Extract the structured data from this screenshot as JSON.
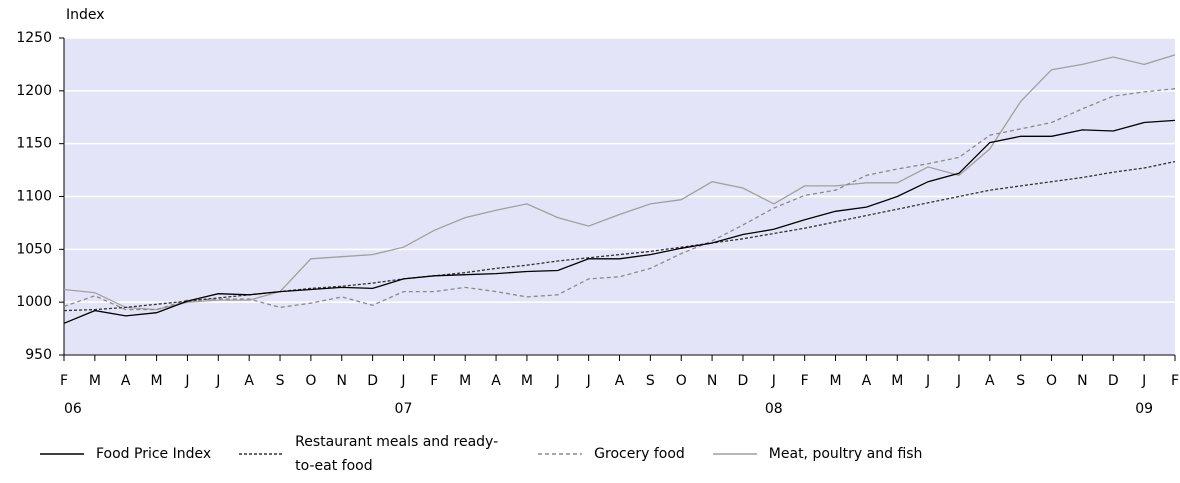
{
  "chart_data": {
    "type": "line",
    "y_label": "Index",
    "categories": [
      "F",
      "M",
      "A",
      "M",
      "J",
      "J",
      "A",
      "S",
      "O",
      "N",
      "D",
      "J",
      "F",
      "M",
      "A",
      "M",
      "J",
      "J",
      "A",
      "S",
      "O",
      "N",
      "D",
      "J",
      "F",
      "M",
      "A",
      "M",
      "J",
      "J",
      "A",
      "S",
      "O",
      "N",
      "D",
      "J",
      "F"
    ],
    "years": [
      "06",
      null,
      null,
      null,
      null,
      null,
      null,
      null,
      null,
      null,
      null,
      "07",
      null,
      null,
      null,
      null,
      null,
      null,
      null,
      null,
      null,
      null,
      null,
      "08",
      null,
      null,
      null,
      null,
      null,
      null,
      null,
      null,
      null,
      null,
      null,
      "09",
      null
    ],
    "ylim": [
      950,
      1250
    ],
    "yticks": [
      950,
      1000,
      1050,
      1100,
      1150,
      1200,
      1250
    ],
    "grid": true,
    "background": "#e4e4f8",
    "series": [
      {
        "name": "Food Price Index",
        "color": "#000000",
        "dash": "none",
        "values": [
          980,
          992,
          987,
          990,
          1001,
          1008,
          1007,
          1010,
          1012,
          1014,
          1013,
          1022,
          1025,
          1026,
          1027,
          1029,
          1030,
          1041,
          1041,
          1045,
          1051,
          1056,
          1064,
          1069,
          1078,
          1086,
          1090,
          1100,
          1114,
          1122,
          1151,
          1157,
          1157,
          1163,
          1162,
          1170,
          1172
        ]
      },
      {
        "name": "Restaurant meals and ready-to-eat food",
        "color": "#333333",
        "dash": "3 2",
        "values": [
          992,
          993,
          995,
          998,
          1001,
          1004,
          1007,
          1010,
          1013,
          1015,
          1018,
          1022,
          1025,
          1028,
          1032,
          1035,
          1039,
          1042,
          1045,
          1048,
          1052,
          1056,
          1060,
          1065,
          1070,
          1076,
          1082,
          1088,
          1094,
          1100,
          1106,
          1110,
          1114,
          1118,
          1123,
          1127,
          1133
        ]
      },
      {
        "name": "Grocery food",
        "color": "#8a8a8a",
        "dash": "4 3",
        "values": [
          996,
          1006,
          993,
          993,
          1002,
          1003,
          1003,
          995,
          999,
          1005,
          997,
          1010,
          1010,
          1014,
          1010,
          1005,
          1007,
          1022,
          1024,
          1032,
          1046,
          1058,
          1073,
          1089,
          1101,
          1106,
          1120,
          1126,
          1131,
          1137,
          1158,
          1164,
          1170,
          1183,
          1195,
          1199,
          1202
        ]
      },
      {
        "name": "Meat, poultry and fish",
        "color": "#a0a0a0",
        "dash": "none",
        "values": [
          1012,
          1009,
          995,
          993,
          1000,
          1002,
          1002,
          1010,
          1041,
          1043,
          1045,
          1052,
          1068,
          1080,
          1087,
          1093,
          1080,
          1072,
          1083,
          1093,
          1097,
          1114,
          1108,
          1093,
          1110,
          1110,
          1113,
          1113,
          1128,
          1120,
          1145,
          1190,
          1220,
          1225,
          1232,
          1225,
          1234
        ]
      }
    ]
  }
}
